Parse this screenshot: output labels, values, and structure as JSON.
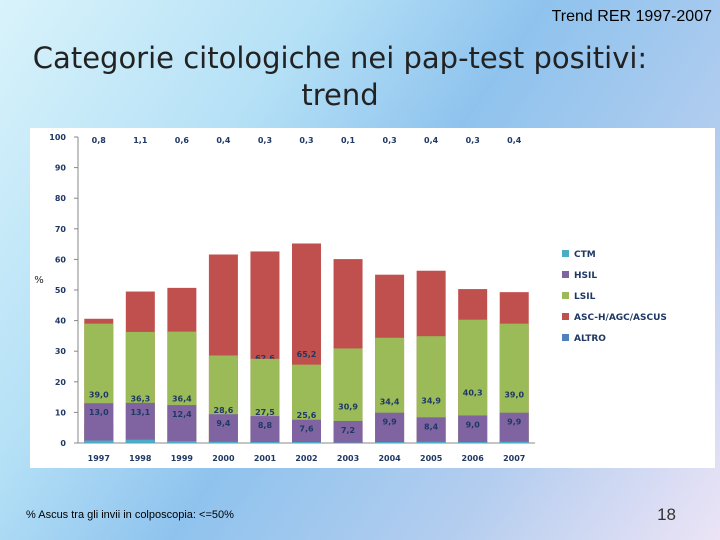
{
  "header": {
    "title": "Trend RER 1997-2007"
  },
  "slide": {
    "title": "Categorie citologiche nei pap-test positivi: trend",
    "footnote": "% Ascus tra gli invii in colposcopia: <=50%",
    "page_number": "18"
  },
  "chart_data": {
    "type": "bar",
    "stacked": true,
    "categories": [
      "1997",
      "1998",
      "1999",
      "2000",
      "2001",
      "2002",
      "2003",
      "2004",
      "2005",
      "2006",
      "2007"
    ],
    "series": [
      {
        "name": "ALTRO",
        "color": "#4f81bd",
        "values": [
          6.6,
          0.0,
          0.0,
          0.0,
          0.9,
          1.3,
          1.7,
          0.4,
          0.1,
          0.2,
          1.3
        ],
        "labels": [
          "6,6",
          "0,0",
          "0,0",
          "0,0",
          "0,9",
          "1,3",
          "1,7",
          "0,4",
          "0,1",
          "0,2",
          "1,3"
        ]
      },
      {
        "name": "ASC-H/AGC/ASCUS",
        "color": "#c0504d",
        "values": [
          40.6,
          49.5,
          50.7,
          61.6,
          62.6,
          65.2,
          60.1,
          55.0,
          56.3,
          50.3,
          49.3
        ],
        "labels": [
          "40,6",
          "49,5",
          "50,7",
          "61,6",
          "62,6",
          "65,2",
          "60,1",
          "55,0",
          "56,3",
          "50,3",
          "49,3"
        ]
      },
      {
        "name": "LSIL",
        "color": "#9bbb59",
        "values": [
          39.0,
          36.3,
          36.4,
          28.6,
          27.5,
          25.6,
          30.9,
          34.4,
          34.9,
          40.3,
          39.0
        ],
        "labels": [
          "39,0",
          "36,3",
          "36,4",
          "28,6",
          "27,5",
          "25,6",
          "30,9",
          "34,4",
          "34,9",
          "40,3",
          "39,0"
        ]
      },
      {
        "name": "HSIL",
        "color": "#8064a2",
        "values": [
          13.0,
          13.1,
          12.4,
          9.4,
          8.8,
          7.6,
          7.2,
          9.9,
          8.4,
          9.0,
          9.9
        ],
        "labels": [
          "13,0",
          "13,1",
          "12,4",
          "9,4",
          "8,8",
          "7,6",
          "7,2",
          "9,9",
          "8,4",
          "9,0",
          "9,9"
        ]
      },
      {
        "name": "CTM",
        "color": "#4bacc6",
        "values": [
          0.8,
          1.1,
          0.6,
          0.4,
          0.3,
          0.3,
          0.1,
          0.3,
          0.4,
          0.3,
          0.4
        ],
        "labels": [
          "0,8",
          "1,1",
          "0,6",
          "0,4",
          "0,3",
          "0,3",
          "0,1",
          "0,3",
          "0,4",
          "0,3",
          "0,4"
        ]
      }
    ],
    "legend_order": [
      "CTM",
      "HSIL",
      "LSIL",
      "ASC-H/AGC/ASCUS",
      "ALTRO"
    ],
    "ylabel": "%",
    "ylim": [
      0,
      100
    ],
    "yticks": [
      0,
      10,
      20,
      30,
      40,
      50,
      60,
      70,
      80,
      90,
      100
    ],
    "grid": false,
    "legend_position": "right"
  }
}
